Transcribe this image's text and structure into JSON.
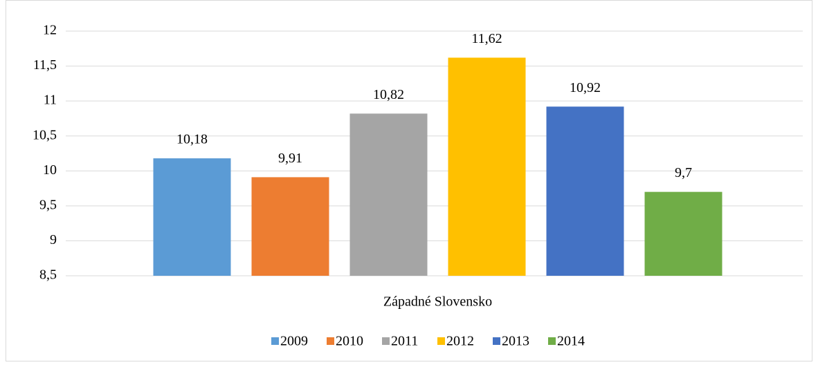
{
  "chart_data": {
    "type": "bar",
    "categories": [
      "Západné Slovensko"
    ],
    "series": [
      {
        "name": "2009",
        "color": "#5b9bd5",
        "values": [
          10.18
        ],
        "value_labels": [
          "10,18"
        ]
      },
      {
        "name": "2010",
        "color": "#ed7d31",
        "values": [
          9.91
        ],
        "value_labels": [
          "9,91"
        ]
      },
      {
        "name": "2011",
        "color": "#a5a5a5",
        "values": [
          10.82
        ],
        "value_labels": [
          "10,82"
        ]
      },
      {
        "name": "2012",
        "color": "#ffc000",
        "values": [
          11.62
        ],
        "value_labels": [
          "11,62"
        ]
      },
      {
        "name": "2013",
        "color": "#4472c4",
        "values": [
          10.92
        ],
        "value_labels": [
          "10,92"
        ]
      },
      {
        "name": "2014",
        "color": "#70ad47",
        "values": [
          9.7
        ],
        "value_labels": [
          "9,7"
        ]
      }
    ],
    "ylim": [
      8.5,
      12
    ],
    "yticks": [
      {
        "value": 8.5,
        "label": "8,5"
      },
      9,
      {
        "value": 9.5,
        "label": "9,5"
      },
      10,
      {
        "value": 10.5,
        "label": "10,5"
      },
      11,
      {
        "value": 11.5,
        "label": "11,5"
      },
      12
    ],
    "grid": true,
    "legend": "bottom"
  }
}
